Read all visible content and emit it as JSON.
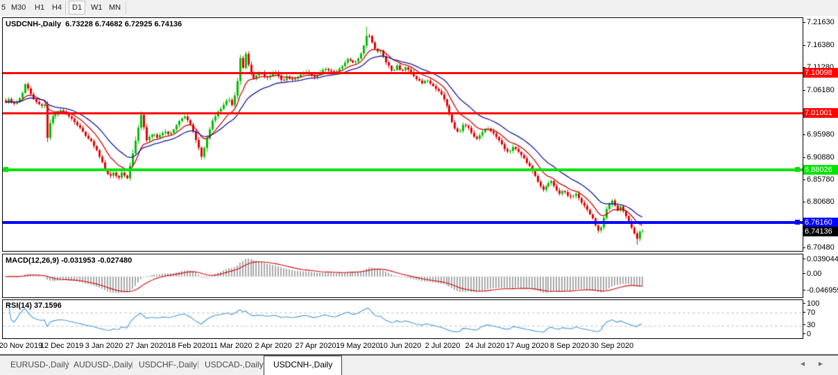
{
  "toolbar": {
    "timeframes": [
      "5",
      "M30",
      "H1",
      "H4",
      "D1",
      "W1",
      "MN"
    ],
    "active_timeframe": "D1"
  },
  "window": {
    "symbol_title": "USDCNH-,Daily",
    "ohlc_text": "6.73228 6.74682 6.72925 6.74136"
  },
  "price_axis": {
    "tick_labels": [
      "7.21630",
      "7.16380",
      "7.11280",
      "7.06180",
      "6.95980",
      "6.90880",
      "6.85780",
      "6.80680",
      "6.70480"
    ]
  },
  "levels": [
    {
      "label": "7.10098",
      "price": 7.10098,
      "color": "#ff0000",
      "type": "resistance-line"
    },
    {
      "label": "7.01001",
      "price": 7.01001,
      "color": "#ff0000",
      "type": "resistance-line"
    },
    {
      "label": "6.88026",
      "price": 6.88026,
      "color": "#00e400",
      "type": "support-line"
    },
    {
      "label": "6.76160",
      "price": 6.7616,
      "color": "#0000ff",
      "type": "support-line"
    }
  ],
  "current_price": {
    "label": "6.74136",
    "value": 6.74136
  },
  "indicators": {
    "macd": {
      "label": "MACD(12,26,9)",
      "values_text": "-0.031953 -0.027480",
      "scale_labels": [
        "0.039044",
        "0.00",
        "-0.046959"
      ]
    },
    "rsi": {
      "label": "RSI(14)",
      "value_text": "37.1596",
      "scale_labels": [
        "100",
        "70",
        "30",
        "0"
      ],
      "level_lines": [
        70,
        30
      ]
    }
  },
  "tabs": {
    "separator": "|",
    "items": [
      {
        "label": "EURUSD-,Daily"
      },
      {
        "label": "AUDUSD-,Daily"
      },
      {
        "label": "USDCHF-,Daily"
      },
      {
        "label": "USDCAD-,Daily"
      },
      {
        "label": "USDCNH-,Daily"
      }
    ],
    "active": "USDCNH-,Daily"
  },
  "chart_data": {
    "type": "candlestick",
    "symbol": "USDCNH",
    "timeframe": "Daily",
    "x_tick_labels": [
      "20 Nov 2019",
      "12 Dec 2019",
      "3 Jan 2020",
      "27 Jan 2020",
      "18 Feb 2020",
      "11 Mar 2020",
      "2 Apr 2020",
      "27 Apr 2020",
      "19 May 2020",
      "10 Jun 2020",
      "2 Jul 2020",
      "24 Jul 2020",
      "17 Aug 2020",
      "8 Sep 2020",
      "30 Sep 2020"
    ],
    "visible_price_range": [
      6.695,
      7.226
    ],
    "current_bar": {
      "open": 6.73228,
      "high": 6.74682,
      "low": 6.72925,
      "close": 6.74136
    },
    "approx_bars": 232,
    "high_of_period": 7.206,
    "low_of_period": 6.711,
    "macd_settings": [
      12,
      26,
      9
    ],
    "rsi_period": 14,
    "up_color": "#00be00",
    "down_color": "#e80000",
    "fast_ma_color": "#cc0000",
    "slow_ma_color": "#1414a0",
    "macd_hist_color": "#a9a9a9",
    "macd_signal_color": "#d40000",
    "rsi_color": "#3e97dd",
    "close_path_anchors": [
      [
        6,
        7.03
      ],
      [
        12,
        7.042
      ],
      [
        18,
        7.028
      ],
      [
        24,
        7.036
      ],
      [
        30,
        7.048
      ],
      [
        36,
        7.076
      ],
      [
        42,
        7.058
      ],
      [
        50,
        7.036
      ],
      [
        58,
        7.026
      ],
      [
        64,
        7.03
      ],
      [
        67,
        6.948
      ],
      [
        70,
        6.978
      ],
      [
        74,
        7.0
      ],
      [
        82,
        7.012
      ],
      [
        90,
        7.016
      ],
      [
        98,
        7.006
      ],
      [
        106,
        6.994
      ],
      [
        114,
        6.978
      ],
      [
        122,
        6.962
      ],
      [
        130,
        6.948
      ],
      [
        138,
        6.928
      ],
      [
        146,
        6.902
      ],
      [
        152,
        6.88
      ],
      [
        158,
        6.866
      ],
      [
        164,
        6.876
      ],
      [
        170,
        6.86
      ],
      [
        176,
        6.88
      ],
      [
        182,
        6.856
      ],
      [
        188,
        6.898
      ],
      [
        196,
        6.958
      ],
      [
        202,
        7.002
      ],
      [
        205,
        7.024
      ],
      [
        208,
        6.94
      ],
      [
        212,
        6.952
      ],
      [
        220,
        6.962
      ],
      [
        228,
        6.954
      ],
      [
        236,
        6.968
      ],
      [
        244,
        6.962
      ],
      [
        252,
        6.978
      ],
      [
        260,
        6.996
      ],
      [
        268,
        7.002
      ],
      [
        274,
        6.984
      ],
      [
        282,
        6.95
      ],
      [
        290,
        6.912
      ],
      [
        296,
        6.94
      ],
      [
        304,
        6.986
      ],
      [
        312,
        7.008
      ],
      [
        320,
        7.024
      ],
      [
        328,
        7.044
      ],
      [
        334,
        7.028
      ],
      [
        340,
        7.062
      ],
      [
        346,
        7.14
      ],
      [
        350,
        7.108
      ],
      [
        354,
        7.148
      ],
      [
        358,
        7.114
      ],
      [
        364,
        7.086
      ],
      [
        370,
        7.096
      ],
      [
        376,
        7.106
      ],
      [
        382,
        7.09
      ],
      [
        390,
        7.094
      ],
      [
        398,
        7.104
      ],
      [
        406,
        7.082
      ],
      [
        414,
        7.092
      ],
      [
        422,
        7.084
      ],
      [
        430,
        7.094
      ],
      [
        438,
        7.104
      ],
      [
        446,
        7.1
      ],
      [
        454,
        7.09
      ],
      [
        462,
        7.104
      ],
      [
        470,
        7.112
      ],
      [
        478,
        7.102
      ],
      [
        486,
        7.106
      ],
      [
        494,
        7.118
      ],
      [
        502,
        7.134
      ],
      [
        510,
        7.122
      ],
      [
        518,
        7.138
      ],
      [
        524,
        7.16
      ],
      [
        530,
        7.194
      ],
      [
        536,
        7.172
      ],
      [
        542,
        7.15
      ],
      [
        548,
        7.154
      ],
      [
        554,
        7.13
      ],
      [
        560,
        7.116
      ],
      [
        566,
        7.104
      ],
      [
        572,
        7.118
      ],
      [
        578,
        7.104
      ],
      [
        584,
        7.114
      ],
      [
        590,
        7.106
      ],
      [
        596,
        7.094
      ],
      [
        602,
        7.084
      ],
      [
        608,
        7.078
      ],
      [
        614,
        7.086
      ],
      [
        620,
        7.076
      ],
      [
        626,
        7.068
      ],
      [
        632,
        7.06
      ],
      [
        638,
        7.048
      ],
      [
        644,
        7.024
      ],
      [
        650,
        6.996
      ],
      [
        656,
        6.972
      ],
      [
        662,
        6.966
      ],
      [
        668,
        6.986
      ],
      [
        674,
        6.98
      ],
      [
        680,
        6.964
      ],
      [
        686,
        6.95
      ],
      [
        692,
        6.96
      ],
      [
        698,
        6.97
      ],
      [
        704,
        6.976
      ],
      [
        710,
        6.964
      ],
      [
        716,
        6.954
      ],
      [
        722,
        6.94
      ],
      [
        728,
        6.926
      ],
      [
        734,
        6.922
      ],
      [
        740,
        6.934
      ],
      [
        746,
        6.924
      ],
      [
        752,
        6.912
      ],
      [
        758,
        6.898
      ],
      [
        764,
        6.886
      ],
      [
        770,
        6.868
      ],
      [
        776,
        6.852
      ],
      [
        782,
        6.836
      ],
      [
        788,
        6.846
      ],
      [
        794,
        6.856
      ],
      [
        800,
        6.838
      ],
      [
        806,
        6.826
      ],
      [
        812,
        6.834
      ],
      [
        818,
        6.822
      ],
      [
        824,
        6.82
      ],
      [
        830,
        6.826
      ],
      [
        836,
        6.812
      ],
      [
        842,
        6.798
      ],
      [
        848,
        6.786
      ],
      [
        854,
        6.77
      ],
      [
        858,
        6.756
      ],
      [
        862,
        6.744
      ],
      [
        866,
        6.752
      ],
      [
        870,
        6.774
      ],
      [
        874,
        6.792
      ],
      [
        878,
        6.802
      ],
      [
        882,
        6.81
      ],
      [
        886,
        6.798
      ],
      [
        890,
        6.788
      ],
      [
        894,
        6.798
      ],
      [
        898,
        6.788
      ],
      [
        902,
        6.776
      ],
      [
        906,
        6.764
      ],
      [
        910,
        6.75
      ],
      [
        914,
        6.736
      ],
      [
        917,
        6.722
      ],
      [
        920,
        6.736
      ],
      [
        923,
        6.744
      ],
      [
        926,
        6.7414
      ]
    ]
  }
}
